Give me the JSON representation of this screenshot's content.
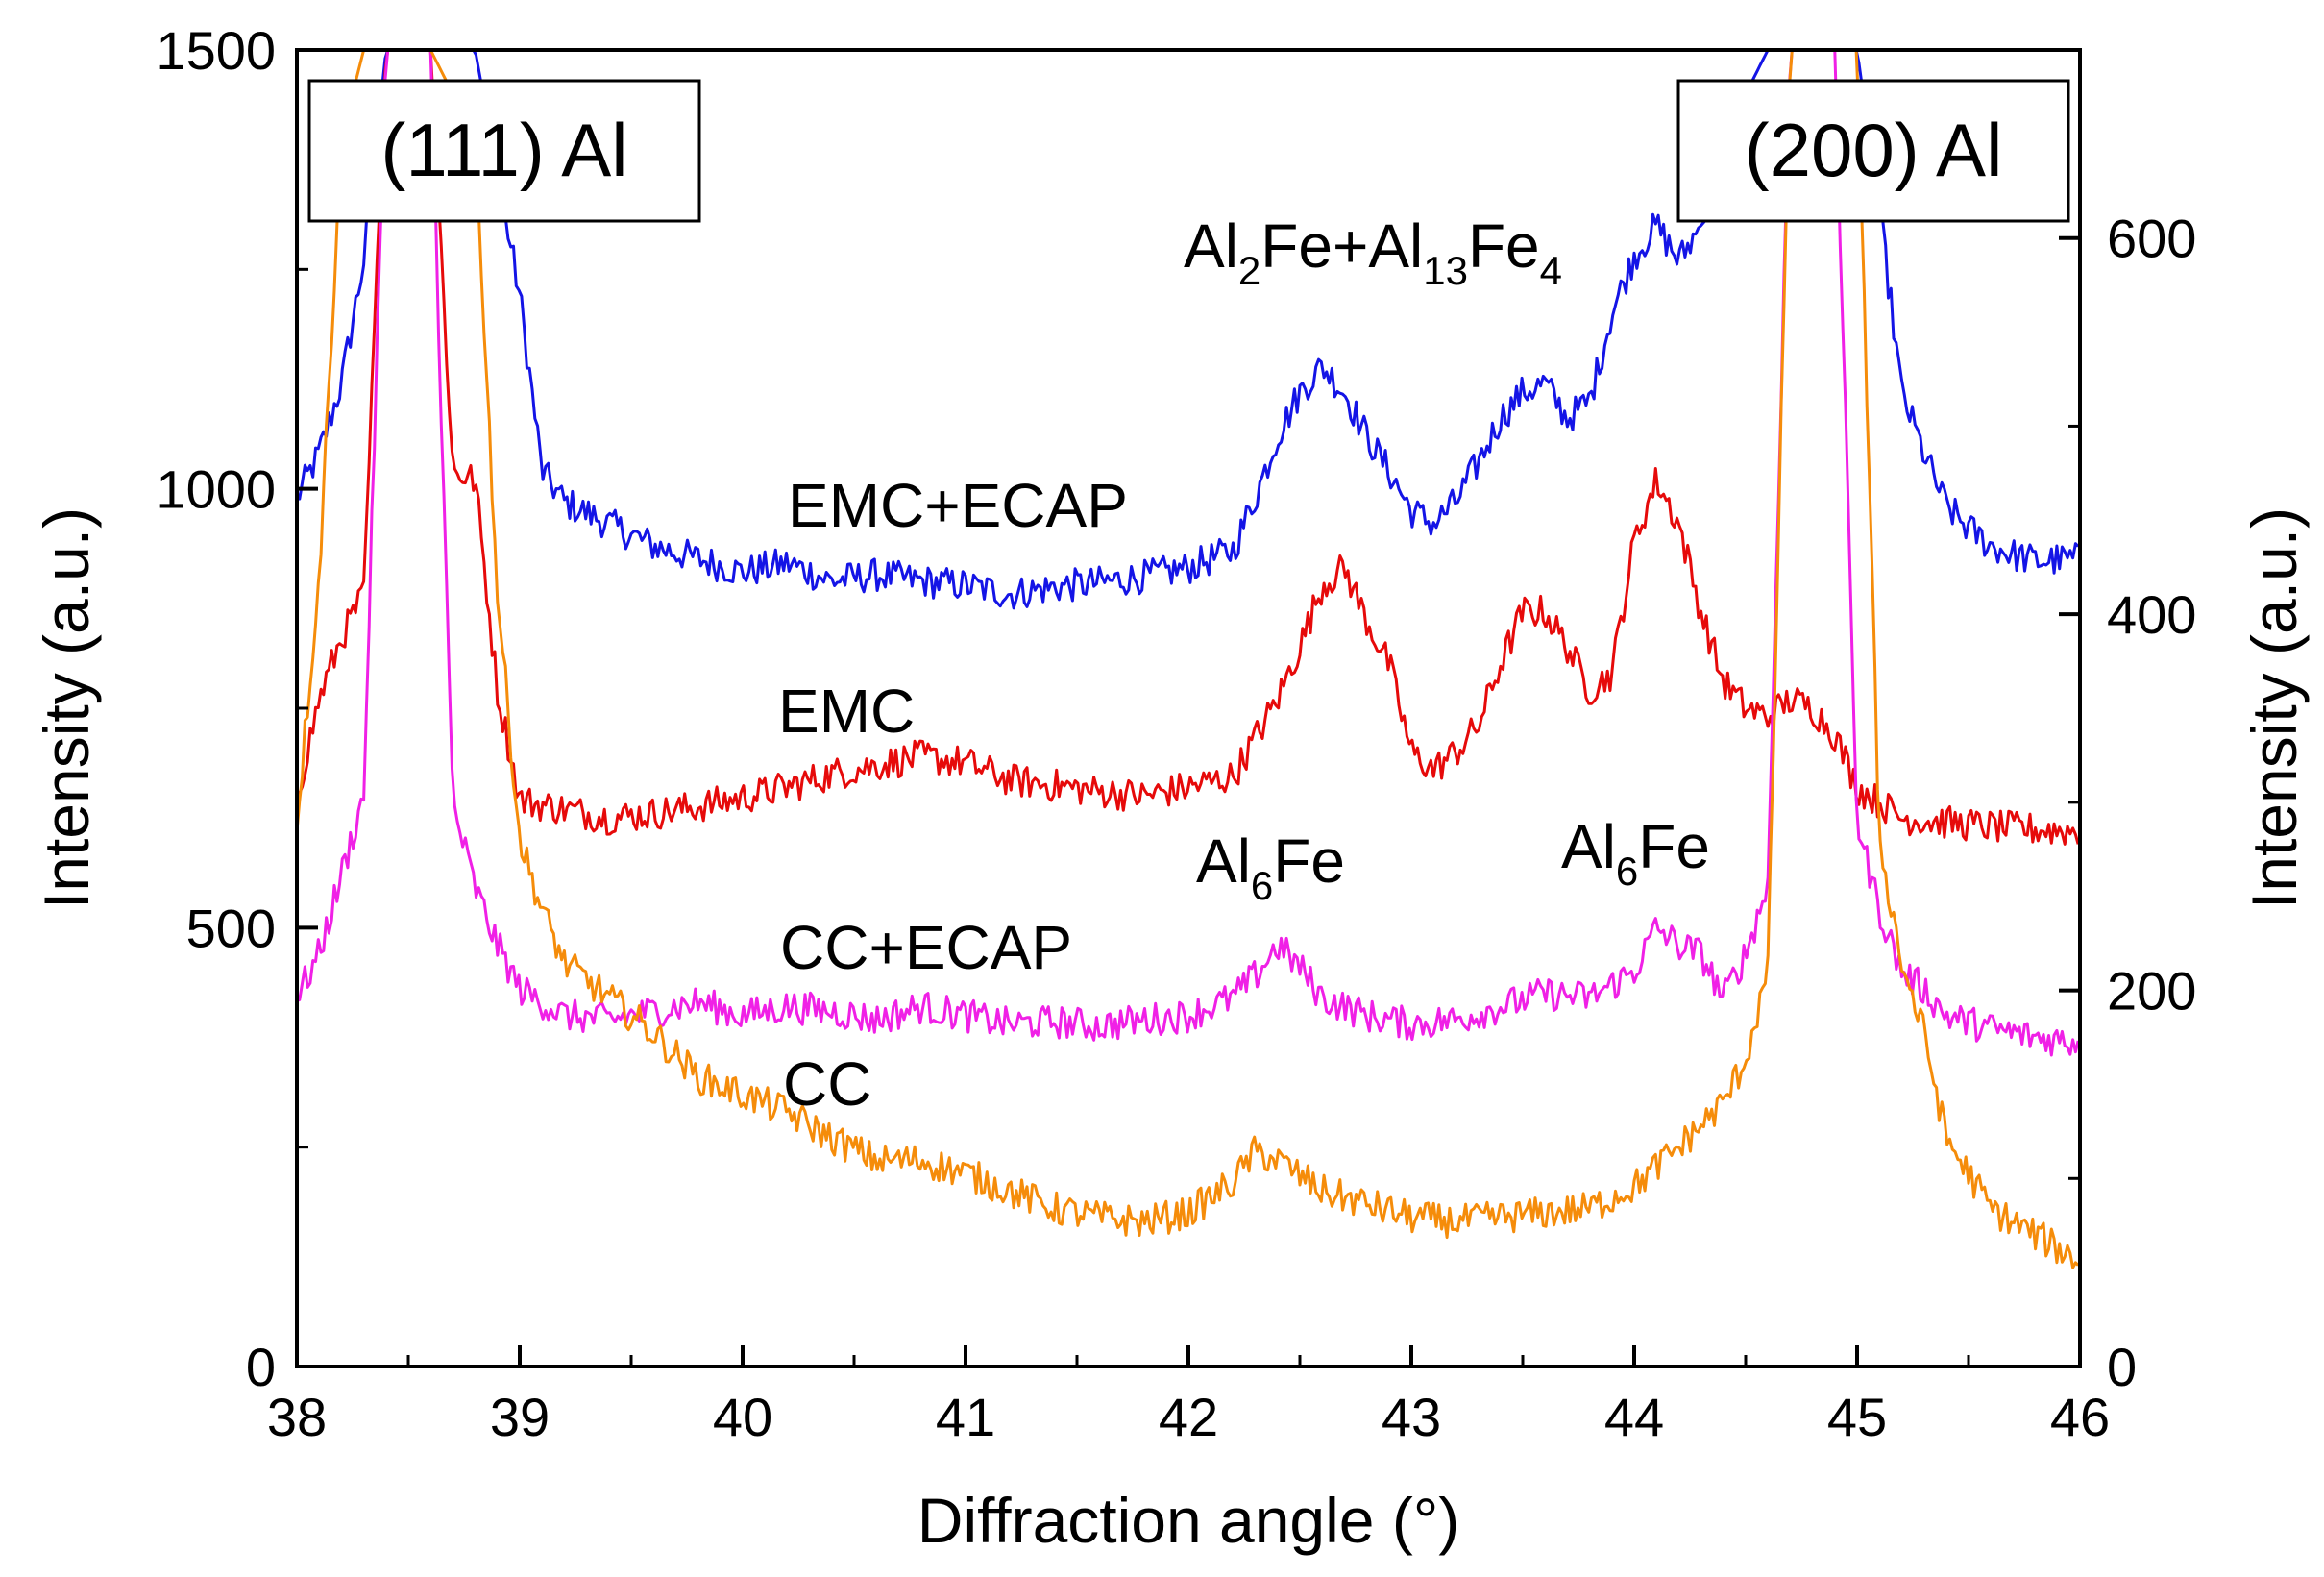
{
  "chart_data": {
    "type": "line",
    "title": "",
    "xlabel": "Diffraction angle (°)",
    "ylabel": "Intensity (a.u.)",
    "y2label": "Intensity (a.u.)",
    "xlim": [
      38,
      46
    ],
    "ylim": [
      0,
      1500
    ],
    "y2lim": [
      0,
      700
    ],
    "x_ticks": [
      38,
      39,
      40,
      41,
      42,
      43,
      44,
      45,
      46
    ],
    "y_ticks": [
      0,
      500,
      1000,
      1500
    ],
    "y2_ticks": [
      0,
      200,
      400,
      600
    ],
    "grid": false,
    "series": [
      {
        "name": "EMC+ECAP",
        "color": "#1414e6",
        "x": [
          38.0,
          38.1,
          38.2,
          38.3,
          38.4,
          38.6,
          38.8,
          38.9,
          39.0,
          39.1,
          39.2,
          39.4,
          39.6,
          39.8,
          40.0,
          40.2,
          40.4,
          40.6,
          40.8,
          41.0,
          41.2,
          41.4,
          41.6,
          41.8,
          42.0,
          42.2,
          42.3,
          42.4,
          42.5,
          42.6,
          42.7,
          42.8,
          42.9,
          43.0,
          43.1,
          43.2,
          43.3,
          43.4,
          43.5,
          43.6,
          43.7,
          43.8,
          43.9,
          44.0,
          44.1,
          44.2,
          44.3,
          44.4,
          44.5,
          44.6,
          44.8,
          45.0,
          45.1,
          45.2,
          45.3,
          45.4,
          45.5,
          45.6,
          45.7,
          45.8,
          46.0
        ],
        "y": [
          990,
          1040,
          1120,
          1260,
          1500,
          1500,
          1500,
          1360,
          1220,
          1020,
          985,
          960,
          935,
          920,
          905,
          915,
          895,
          902,
          895,
          890,
          880,
          888,
          893,
          900,
          910,
          930,
          990,
          1060,
          1110,
          1140,
          1110,
          1060,
          1020,
          975,
          960,
          985,
          1030,
          1080,
          1110,
          1120,
          1080,
          1100,
          1200,
          1265,
          1300,
          1260,
          1300,
          1330,
          1450,
          1500,
          1500,
          1500,
          1320,
          1110,
          1040,
          980,
          955,
          935,
          925,
          918,
          920
        ]
      },
      {
        "name": "EMC",
        "color": "#e60a0a",
        "x": [
          38.0,
          38.1,
          38.2,
          38.3,
          38.4,
          38.6,
          38.7,
          38.8,
          38.9,
          39.0,
          39.2,
          39.4,
          39.6,
          39.8,
          40.0,
          40.2,
          40.4,
          40.6,
          40.8,
          41.0,
          41.2,
          41.4,
          41.6,
          41.8,
          42.0,
          42.2,
          42.4,
          42.5,
          42.6,
          42.7,
          42.8,
          42.9,
          43.0,
          43.1,
          43.2,
          43.3,
          43.4,
          43.5,
          43.6,
          43.7,
          43.8,
          43.9,
          44.0,
          44.1,
          44.2,
          44.3,
          44.4,
          44.5,
          44.6,
          44.7,
          44.8,
          44.9,
          45.0,
          45.2,
          45.4,
          45.6,
          45.8,
          46.0
        ],
        "y": [
          650,
          760,
          830,
          880,
          1500,
          1500,
          1020,
          1010,
          770,
          645,
          635,
          625,
          630,
          638,
          648,
          660,
          675,
          685,
          695,
          688,
          668,
          662,
          655,
          650,
          660,
          672,
          760,
          820,
          890,
          910,
          850,
          800,
          700,
          680,
          700,
          730,
          800,
          860,
          860,
          820,
          770,
          790,
          940,
          1010,
          960,
          860,
          780,
          750,
          740,
          760,
          750,
          720,
          660,
          625,
          620,
          615,
          612,
          610
        ]
      },
      {
        "name": "CC+ECAP",
        "color": "#f020e6",
        "x": [
          38.0,
          38.1,
          38.2,
          38.3,
          38.4,
          38.5,
          38.6,
          38.7,
          38.8,
          38.9,
          39.0,
          39.2,
          39.4,
          39.6,
          39.8,
          40.0,
          40.2,
          40.4,
          40.6,
          40.8,
          41.0,
          41.2,
          41.4,
          41.6,
          41.8,
          42.0,
          42.2,
          42.3,
          42.4,
          42.5,
          42.6,
          42.8,
          43.0,
          43.2,
          43.4,
          43.6,
          43.8,
          44.0,
          44.1,
          44.2,
          44.3,
          44.4,
          44.5,
          44.6,
          44.7,
          44.8,
          44.9,
          45.0,
          45.1,
          45.2,
          45.3,
          45.4,
          45.6,
          45.8,
          46.0
        ],
        "y": [
          420,
          470,
          560,
          650,
          1500,
          1500,
          1500,
          640,
          545,
          480,
          430,
          400,
          395,
          405,
          415,
          400,
          410,
          405,
          395,
          410,
          400,
          390,
          393,
          388,
          395,
          400,
          420,
          445,
          480,
          455,
          420,
          400,
          390,
          395,
          410,
          425,
          420,
          450,
          500,
          480,
          470,
          420,
          470,
          550,
          1500,
          1500,
          1500,
          620,
          520,
          450,
          430,
          400,
          385,
          375,
          370
        ]
      },
      {
        "name": "CC",
        "color": "#f58c0a",
        "x": [
          38.0,
          38.1,
          38.2,
          38.3,
          38.4,
          38.6,
          38.8,
          38.9,
          39.0,
          39.1,
          39.2,
          39.4,
          39.6,
          39.8,
          40.0,
          40.2,
          40.4,
          40.6,
          40.8,
          41.0,
          41.2,
          41.4,
          41.6,
          41.8,
          42.0,
          42.2,
          42.3,
          42.4,
          42.6,
          42.8,
          43.0,
          43.2,
          43.4,
          43.6,
          43.8,
          44.0,
          44.2,
          44.3,
          44.4,
          44.5,
          44.6,
          44.7,
          44.8,
          44.9,
          45.0,
          45.1,
          45.2,
          45.3,
          45.4,
          45.6,
          45.8,
          46.0
        ],
        "y": [
          620,
          900,
          1400,
          1500,
          1500,
          1500,
          1400,
          880,
          600,
          520,
          460,
          420,
          380,
          330,
          310,
          290,
          260,
          235,
          235,
          220,
          200,
          180,
          170,
          165,
          175,
          210,
          245,
          235,
          200,
          185,
          170,
          165,
          170,
          175,
          180,
          205,
          250,
          275,
          300,
          350,
          450,
          1500,
          1500,
          1500,
          1500,
          600,
          460,
          380,
          260,
          180,
          150,
          120
        ]
      }
    ],
    "annotations": [
      {
        "id": "ann_111",
        "text": "(111) Al",
        "boxed": true
      },
      {
        "id": "ann_200",
        "text": "(200) Al",
        "boxed": true
      },
      {
        "id": "ann_al2fe",
        "text": "Al2Fe+Al13Fe4",
        "parts": [
          {
            "t": "Al",
            "sub": false
          },
          {
            "t": "2",
            "sub": true
          },
          {
            "t": "Fe+Al",
            "sub": false
          },
          {
            "t": "13",
            "sub": true
          },
          {
            "t": "Fe",
            "sub": false
          },
          {
            "t": "4",
            "sub": true
          }
        ]
      },
      {
        "id": "ann_al6fe_1",
        "text": "Al6Fe",
        "parts": [
          {
            "t": "Al",
            "sub": false
          },
          {
            "t": "6",
            "sub": true
          },
          {
            "t": "Fe",
            "sub": false
          }
        ]
      },
      {
        "id": "ann_al6fe_2",
        "text": "Al6Fe",
        "parts": [
          {
            "t": "Al",
            "sub": false
          },
          {
            "t": "6",
            "sub": true
          },
          {
            "t": "Fe",
            "sub": false
          }
        ]
      }
    ],
    "curve_labels": [
      "EMC+ECAP",
      "EMC",
      "CC+ECAP",
      "CC"
    ]
  }
}
